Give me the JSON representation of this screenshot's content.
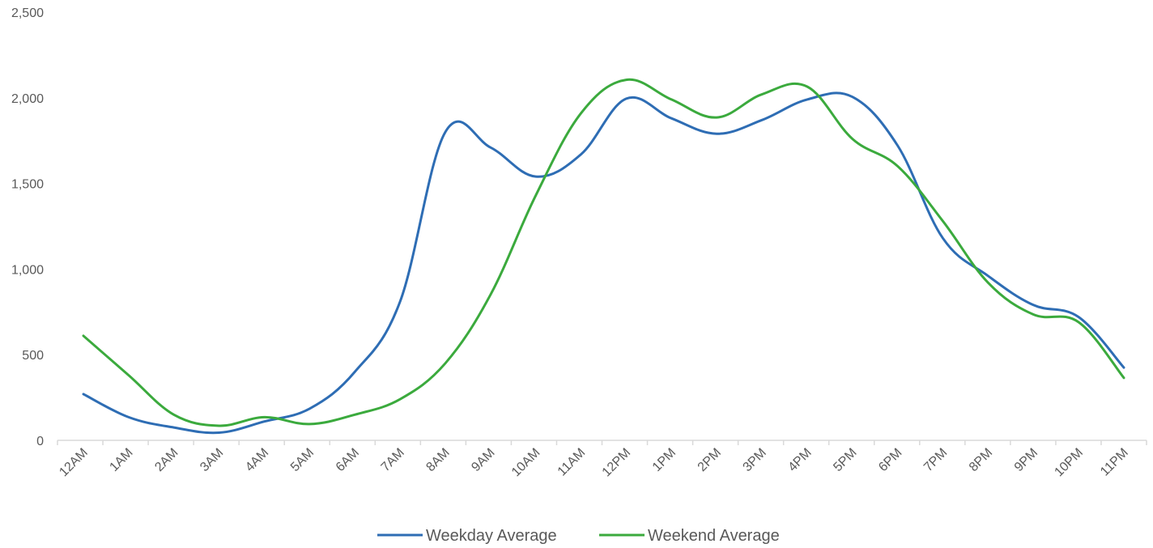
{
  "chart_data": {
    "type": "line",
    "title": "",
    "xlabel": "",
    "ylabel": "",
    "categories": [
      "12AM",
      "1AM",
      "2AM",
      "3AM",
      "4AM",
      "5AM",
      "6AM",
      "7AM",
      "8AM",
      "9AM",
      "10AM",
      "11AM",
      "12PM",
      "1PM",
      "2PM",
      "3PM",
      "4PM",
      "5PM",
      "6PM",
      "7PM",
      "8PM",
      "9PM",
      "10PM",
      "11PM"
    ],
    "ylim": [
      0,
      2500
    ],
    "yticks": [
      0,
      500,
      1000,
      1500,
      2000,
      2500
    ],
    "ytick_labels": [
      "0",
      "500",
      "1,000",
      "1,500",
      "2,000",
      "2,500"
    ],
    "grid": false,
    "legend_position": "bottom",
    "series": [
      {
        "name": "Weekday Average",
        "color": "#2E6DB4",
        "values": [
          270,
          135,
          75,
          45,
          110,
          185,
          400,
          810,
          1800,
          1710,
          1540,
          1670,
          1995,
          1880,
          1790,
          1870,
          1990,
          2005,
          1720,
          1180,
          960,
          790,
          720,
          425
        ]
      },
      {
        "name": "Weekend Average",
        "color": "#3BAA3D",
        "values": [
          610,
          380,
          150,
          85,
          135,
          95,
          150,
          240,
          450,
          850,
          1430,
          1910,
          2105,
          1990,
          1885,
          2020,
          2065,
          1760,
          1600,
          1280,
          920,
          735,
          690,
          365
        ]
      }
    ]
  }
}
